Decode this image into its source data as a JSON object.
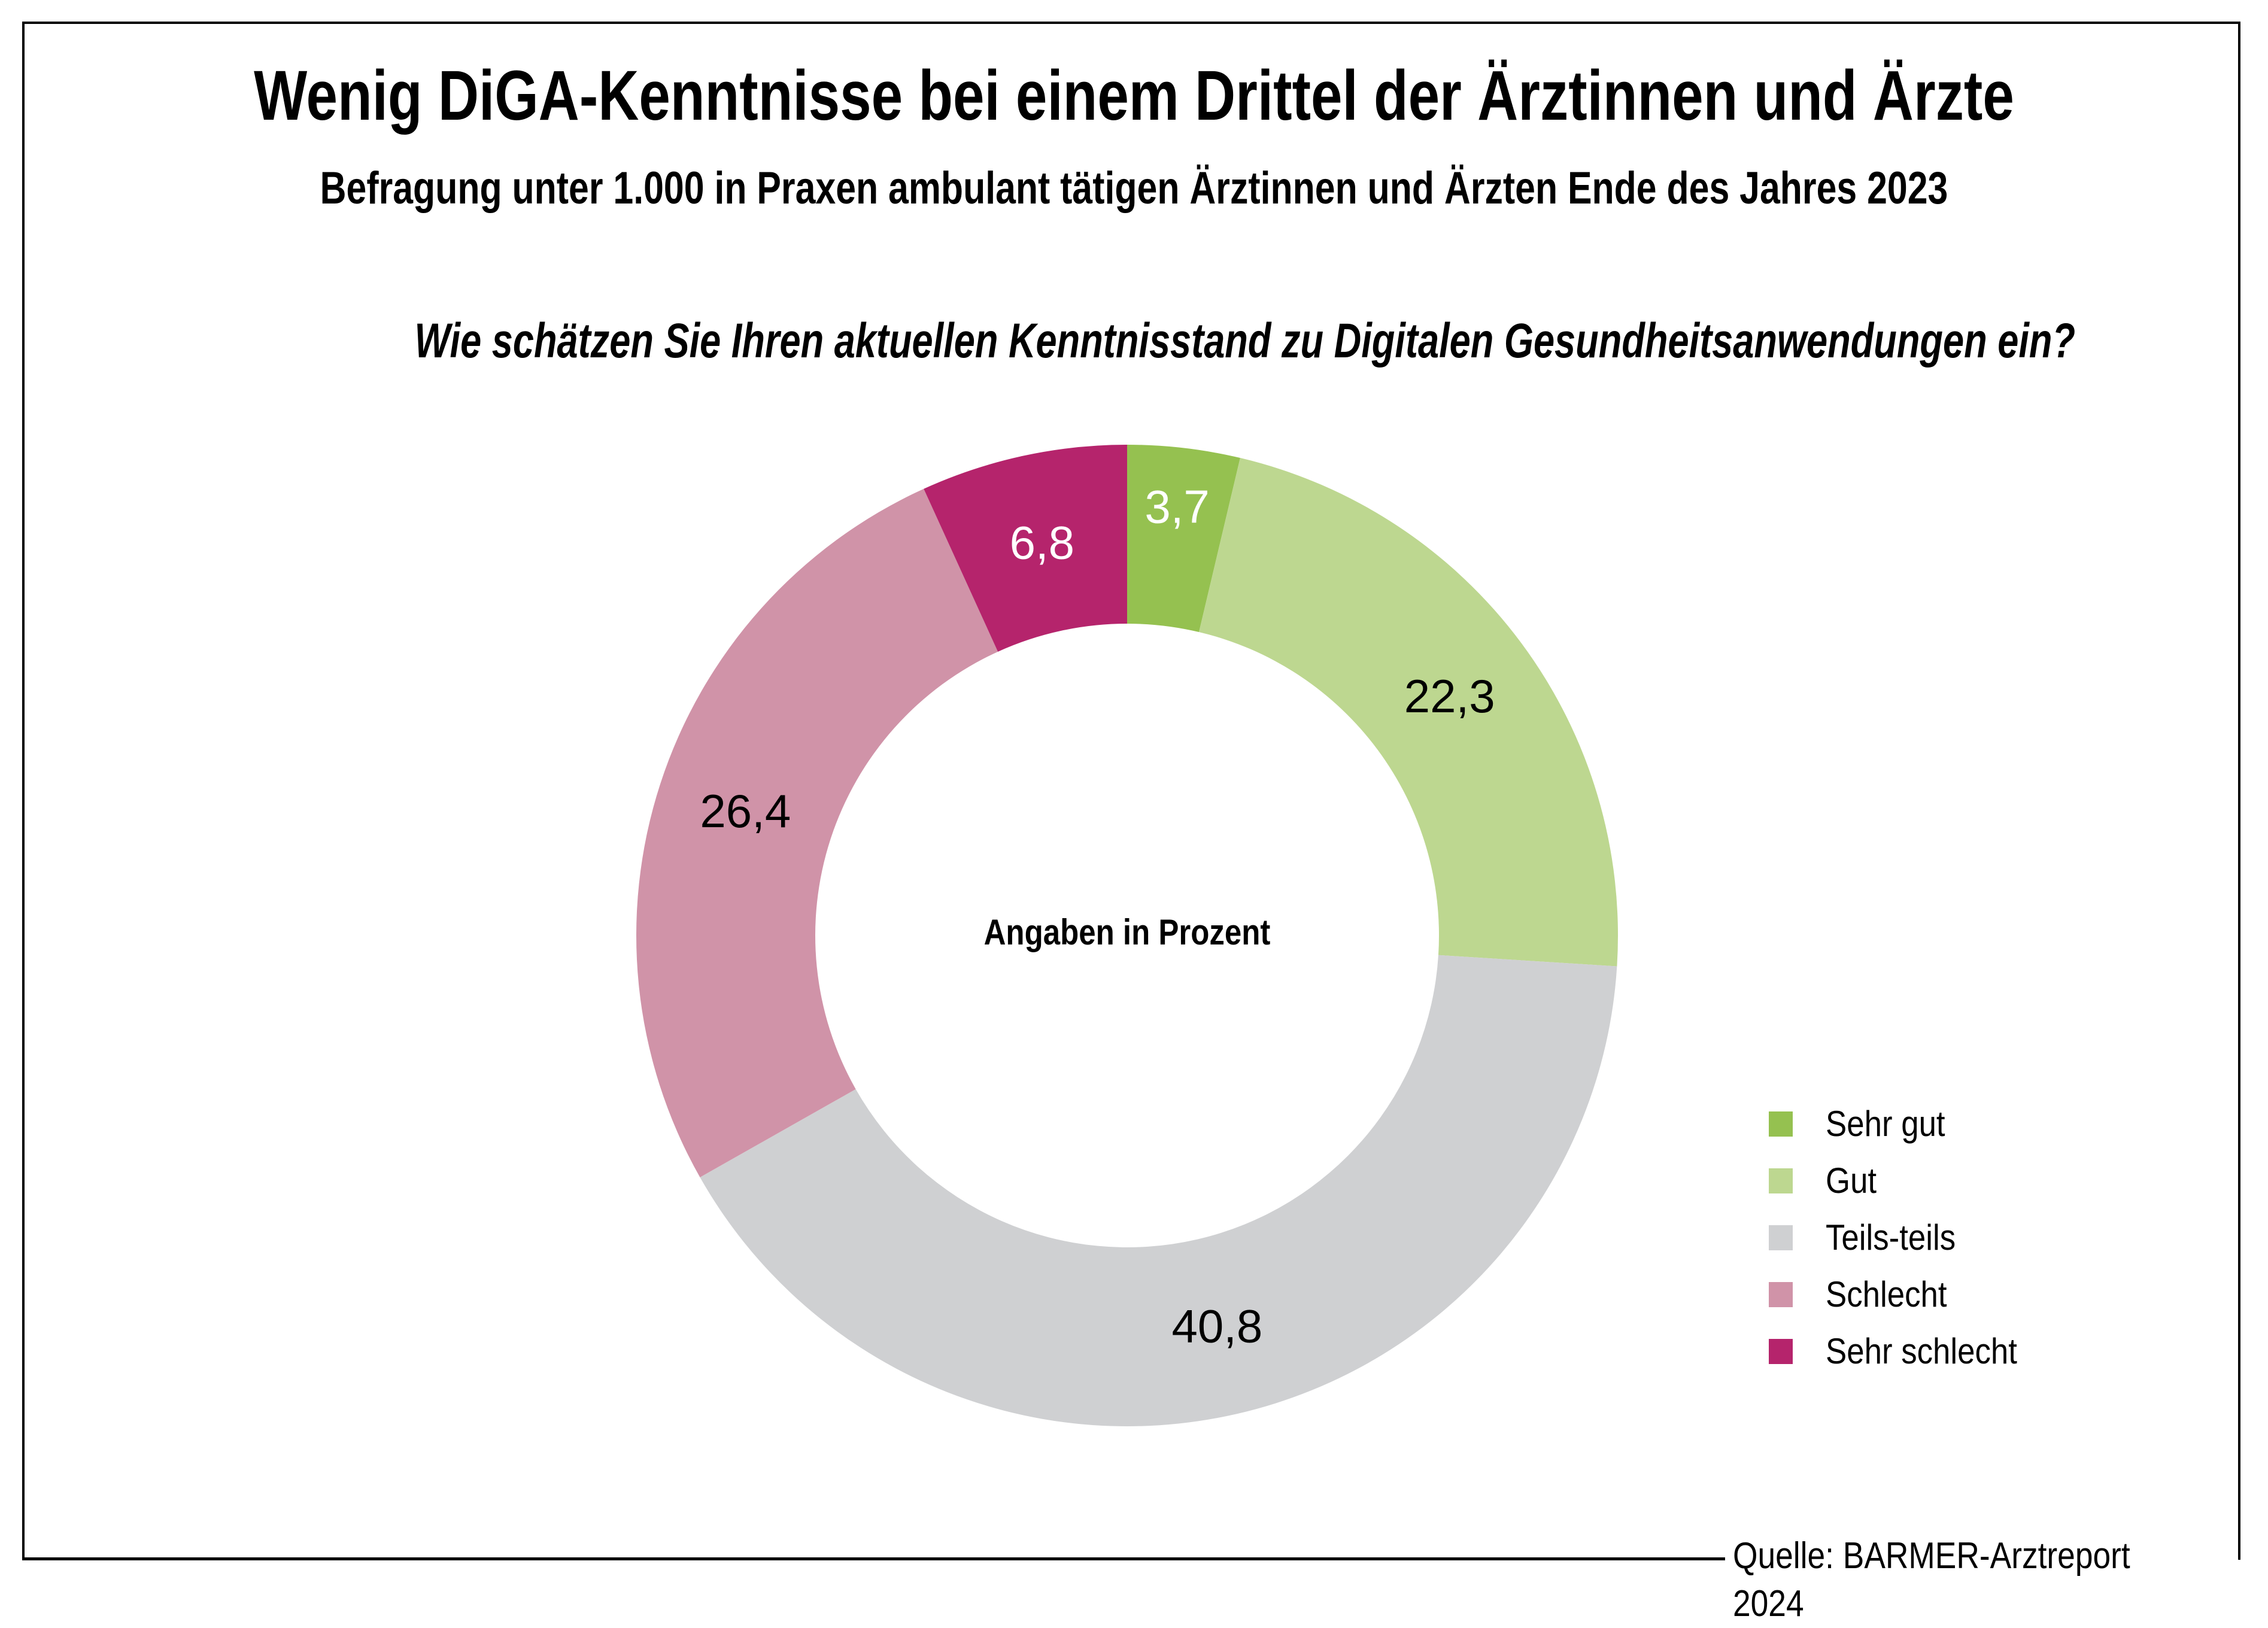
{
  "header": {
    "title": "Wenig DiGA-Kenntnisse bei einem Drittel der Ärztinnen und Ärzte",
    "subtitle": "Befragung unter 1.000 in Praxen ambulant tätigen Ärztinnen und Ärzten Ende des Jahres 2023",
    "question": "Wie schätzen Sie Ihren aktuellen Kenntnisstand zu Digitalen Gesundheitsanwendungen ein?"
  },
  "center_note": "Angaben in Prozent",
  "source": "Quelle: BARMER-Arztreport 2024",
  "chart_data": {
    "type": "pie",
    "variant": "donut",
    "title": "Wenig DiGA-Kenntnisse bei einem Drittel der Ärztinnen und Ärzte",
    "subtitle": "Befragung unter 1.000 in Praxen ambulant tätigen Ärztinnen und Ärzten Ende des Jahres 2023",
    "question": "Wie schätzen Sie Ihren aktuellen Kenntnisstand zu Digitalen Gesundheitsanwendungen ein?",
    "unit": "Prozent",
    "start": "top, clockwise",
    "legend_position": "right-bottom",
    "categories": [
      "Sehr gut",
      "Gut",
      "Teils-teils",
      "Schlecht",
      "Sehr schlecht"
    ],
    "values": [
      3.7,
      22.3,
      40.8,
      26.4,
      6.8
    ],
    "labels": [
      "3,7",
      "22,3",
      "40,8",
      "26,4",
      "6,8"
    ],
    "colors": [
      "#95c150",
      "#bdd790",
      "#cfd0d2",
      "#d093a8",
      "#b5246c"
    ],
    "label_colors": [
      "#ffffff",
      "#000000",
      "#000000",
      "#000000",
      "#ffffff"
    ]
  }
}
